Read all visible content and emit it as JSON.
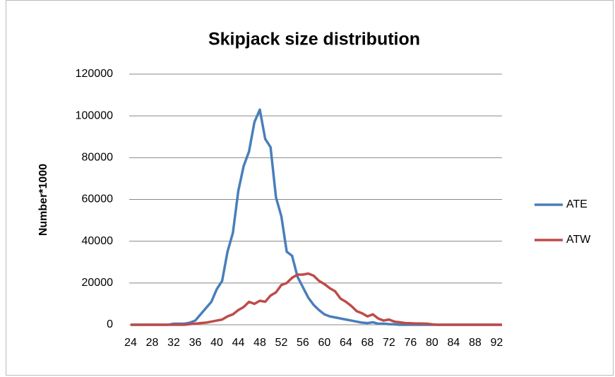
{
  "chart_data": {
    "type": "line",
    "title": "Skipjack size distribution",
    "y_label": "Number*1000",
    "categories": [
      24,
      null,
      null,
      null,
      28,
      null,
      null,
      null,
      32,
      null,
      null,
      null,
      36,
      null,
      null,
      null,
      40,
      null,
      null,
      null,
      44,
      null,
      null,
      null,
      48,
      null,
      null,
      null,
      52,
      null,
      null,
      null,
      56,
      null,
      null,
      null,
      60,
      null,
      null,
      null,
      64,
      null,
      null,
      null,
      68,
      null,
      null,
      null,
      72,
      null,
      null,
      null,
      76,
      null,
      null,
      null,
      80,
      null,
      null,
      null,
      84,
      null,
      null,
      null,
      88,
      null,
      null,
      null,
      92,
      null
    ],
    "series": [
      {
        "name": "ATE",
        "color": "#4a7ebb",
        "values": [
          0,
          0,
          0,
          0,
          0,
          0,
          0,
          0,
          500,
          500,
          500,
          1000,
          2000,
          5000,
          8000,
          11000,
          17000,
          21000,
          35000,
          44000,
          64000,
          76000,
          83000,
          97000,
          103000,
          89000,
          85000,
          61000,
          52000,
          35000,
          33000,
          23000,
          18000,
          13000,
          9500,
          7000,
          5000,
          4000,
          3500,
          3000,
          2500,
          2000,
          1500,
          1000,
          800,
          1200,
          500,
          500,
          300,
          200,
          0,
          0,
          0,
          0,
          0,
          0,
          0,
          0,
          0,
          0,
          0,
          0,
          0,
          0,
          0,
          0,
          0,
          0,
          0,
          0
        ]
      },
      {
        "name": "ATW",
        "color": "#be4b48",
        "values": [
          0,
          0,
          0,
          0,
          0,
          0,
          0,
          0,
          0,
          0,
          0,
          300,
          500,
          800,
          1000,
          1500,
          2000,
          2500,
          4000,
          5000,
          7000,
          8500,
          11000,
          10000,
          11500,
          11000,
          14000,
          15500,
          19000,
          20000,
          22500,
          24000,
          24000,
          24500,
          23500,
          21000,
          19500,
          17500,
          16000,
          12500,
          11000,
          9000,
          6500,
          5500,
          4000,
          5000,
          3000,
          2000,
          2500,
          1500,
          1200,
          800,
          700,
          600,
          600,
          500,
          200,
          0,
          0,
          0,
          0,
          0,
          0,
          0,
          0,
          0,
          0,
          0,
          0,
          0
        ]
      }
    ],
    "ylim": [
      0,
      120000
    ],
    "yticks": [
      0,
      20000,
      40000,
      60000,
      80000,
      100000,
      120000
    ],
    "grid": true,
    "legend": "right"
  }
}
